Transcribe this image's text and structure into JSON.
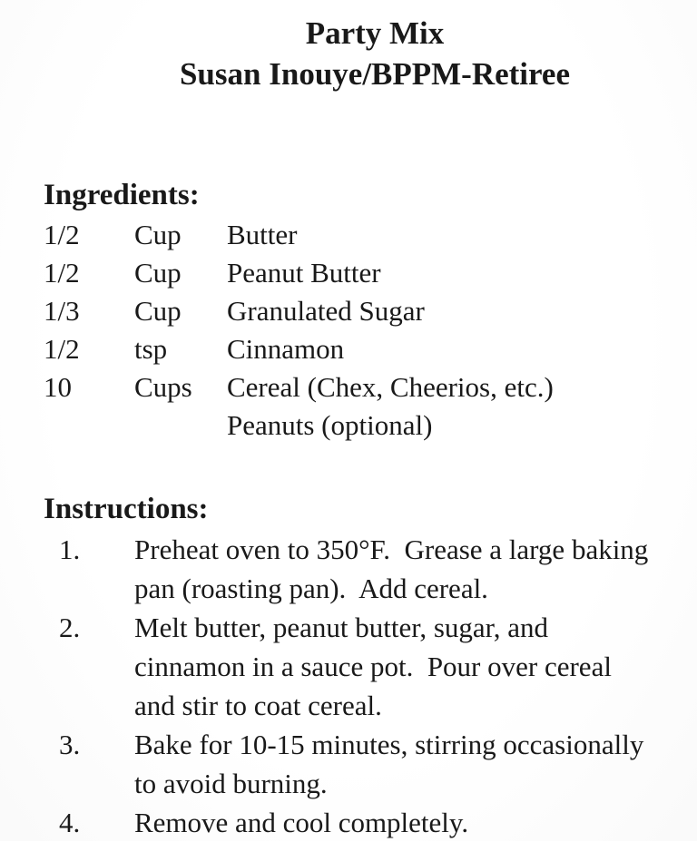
{
  "header": {
    "title": "Party Mix",
    "subtitle": "Susan Inouye/BPPM-Retiree"
  },
  "ingredients": {
    "heading": "Ingredients:",
    "items": [
      {
        "qty": "1/2",
        "unit": "Cup",
        "name": "Butter"
      },
      {
        "qty": "1/2",
        "unit": "Cup",
        "name": "Peanut Butter"
      },
      {
        "qty": "1/3",
        "unit": "Cup",
        "name": "Granulated Sugar"
      },
      {
        "qty": "1/2",
        "unit": "tsp",
        "name": "Cinnamon"
      },
      {
        "qty": "10",
        "unit": "Cups",
        "name": "Cereal (Chex, Cheerios, etc.)"
      },
      {
        "qty": "",
        "unit": "",
        "name": "Peanuts (optional)"
      }
    ]
  },
  "instructions": {
    "heading": "Instructions:",
    "steps": [
      {
        "number": "1.",
        "text": "Preheat oven to 350°F.  Grease a large baking pan (roasting pan).  Add cereal."
      },
      {
        "number": "2.",
        "text": "Melt butter, peanut butter, sugar, and cinnamon in a sauce pot.  Pour over cereal and stir to coat cereal."
      },
      {
        "number": "3.",
        "text": "Bake for 10-15 minutes, stirring occasionally to avoid burning."
      },
      {
        "number": "4.",
        "text": "Remove and cool completely."
      }
    ]
  }
}
